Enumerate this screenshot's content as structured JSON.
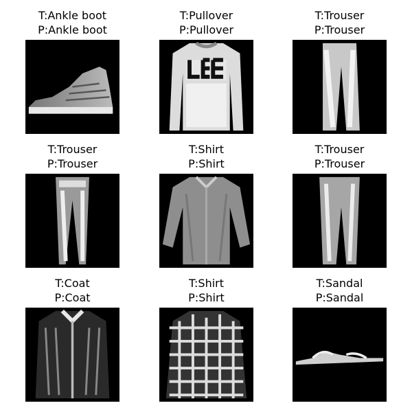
{
  "images": [
    {
      "truth": "T:Ankle boot",
      "pred": "P:Ankle boot",
      "icon": "ankle-boot-image"
    },
    {
      "truth": "T:Pullover",
      "pred": "P:Pullover",
      "icon": "pullover-image"
    },
    {
      "truth": "T:Trouser",
      "pred": "P:Trouser",
      "icon": "trouser-image"
    },
    {
      "truth": "T:Trouser",
      "pred": "P:Trouser",
      "icon": "trouser-image"
    },
    {
      "truth": "T:Shirt",
      "pred": "P:Shirt",
      "icon": "shirt-image"
    },
    {
      "truth": "T:Trouser",
      "pred": "P:Trouser",
      "icon": "trouser-image"
    },
    {
      "truth": "T:Coat",
      "pred": "P:Coat",
      "icon": "coat-image"
    },
    {
      "truth": "T:Shirt",
      "pred": "P:Shirt",
      "icon": "plaid-shirt-image"
    },
    {
      "truth": "T:Sandal",
      "pred": "P:Sandal",
      "icon": "sandal-image"
    }
  ]
}
